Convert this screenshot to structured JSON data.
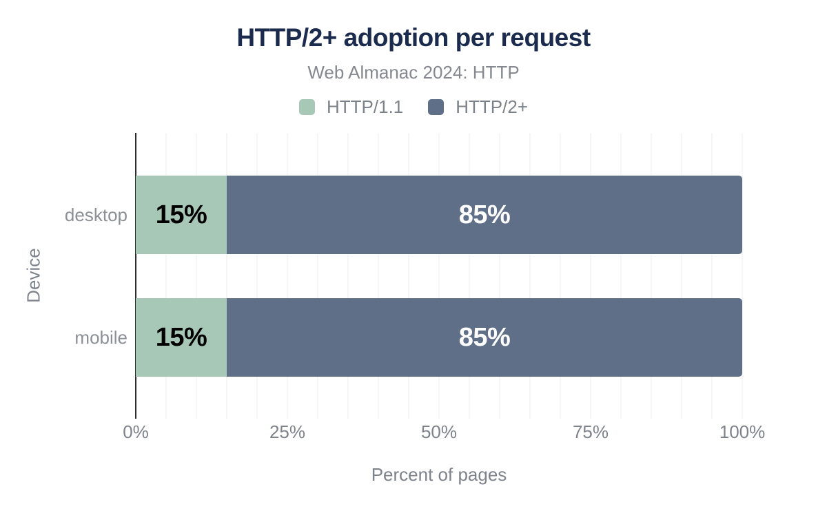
{
  "chart_data": {
    "type": "bar",
    "orientation": "horizontal",
    "stacked": true,
    "title": "HTTP/2+ adoption per request",
    "subtitle": "Web Almanac 2024: HTTP",
    "xlabel": "Percent of pages",
    "ylabel": "Device",
    "categories": [
      "desktop",
      "mobile"
    ],
    "series": [
      {
        "name": "HTTP/1.1",
        "color": "#a7c8b7",
        "values": [
          15,
          15
        ],
        "labels": [
          "15%",
          "15%"
        ],
        "label_color": "#000000"
      },
      {
        "name": "HTTP/2+",
        "color": "#5f6f88",
        "values": [
          85,
          85
        ],
        "labels": [
          "85%",
          "85%"
        ],
        "label_color": "#ffffff"
      }
    ],
    "xlim": [
      0,
      100
    ],
    "x_tick_values": [
      0,
      25,
      50,
      75,
      100
    ],
    "x_ticks": [
      "0%",
      "25%",
      "50%",
      "75%",
      "100%"
    ],
    "grid": {
      "show": true,
      "step_percent": 5,
      "color": "#ededed"
    },
    "legend_position": "top",
    "colors": {
      "title": "#1b2b4d",
      "axis_line": "#2b2b2b",
      "muted_text": "#7d828b",
      "background": "#ffffff"
    }
  }
}
